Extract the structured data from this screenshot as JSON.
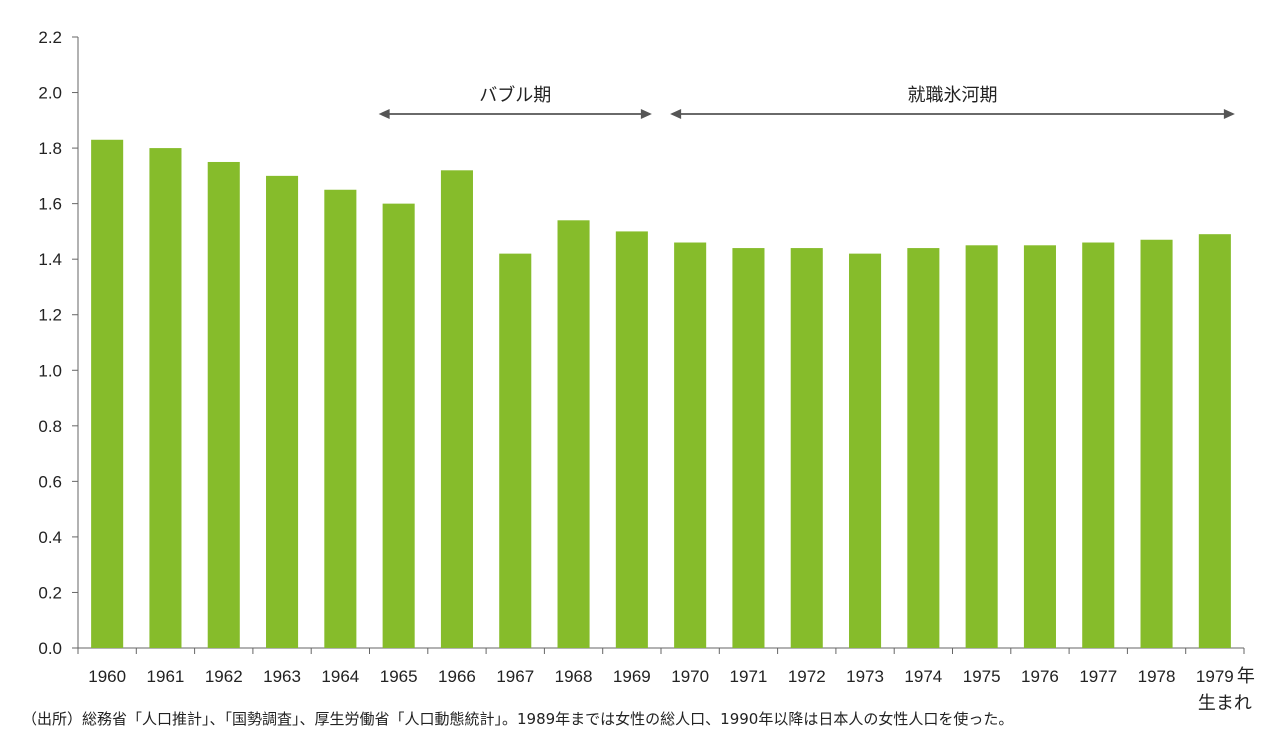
{
  "chart_data": {
    "type": "bar",
    "categories": [
      "1960",
      "1961",
      "1962",
      "1963",
      "1964",
      "1965",
      "1966",
      "1967",
      "1968",
      "1969",
      "1970",
      "1971",
      "1972",
      "1973",
      "1974",
      "1975",
      "1976",
      "1977",
      "1978",
      "1979"
    ],
    "values": [
      1.83,
      1.8,
      1.75,
      1.7,
      1.65,
      1.6,
      1.72,
      1.42,
      1.54,
      1.5,
      1.46,
      1.44,
      1.44,
      1.42,
      1.44,
      1.45,
      1.45,
      1.46,
      1.47,
      1.49
    ],
    "ylim": [
      0,
      2.2
    ],
    "yticks": [
      "0.0",
      "0.2",
      "0.4",
      "0.6",
      "0.8",
      "1.0",
      "1.2",
      "1.4",
      "1.6",
      "1.8",
      "2.0",
      "2.2"
    ],
    "x_suffix": "年",
    "x_suffix2": "生まれ",
    "bar_color": "#86bc2b",
    "grid": false,
    "annotations": [
      {
        "label": "バブル期",
        "from": "1965",
        "to": "1969"
      },
      {
        "label": "就職氷河期",
        "from": "1970",
        "to": "1979"
      }
    ]
  },
  "source_note": "（出所）総務省「人口推計」、「国勢調査」、厚生労働省「人口動態統計」。1989年までは女性の総人口、1990年以降は日本人の女性人口を使った。"
}
